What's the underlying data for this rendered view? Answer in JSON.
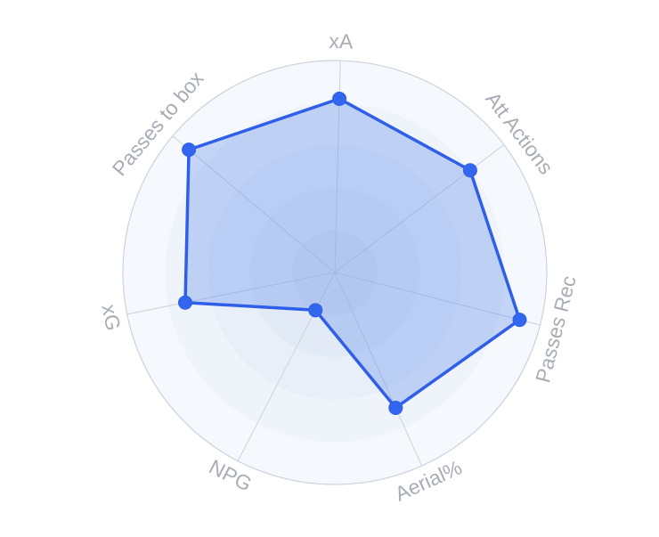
{
  "chart_data": {
    "type": "radar",
    "title": "",
    "axes": [
      "xA",
      "Att Actions",
      "Passes Rec",
      "Aerial%",
      "NPG",
      "xG",
      "Passes to box"
    ],
    "range": [
      0,
      100
    ],
    "rings": 5,
    "grid": true,
    "series": [
      {
        "values": [
          82,
          80,
          90,
          70,
          20,
          72,
          90
        ]
      }
    ],
    "colors": {
      "line": "#2F5FE8",
      "point": "#3366EE",
      "fill": "rgba(70,120,235,0.28)",
      "ring_fill": "#EDF3FA",
      "grid": "#CDD3DB",
      "label": "#A8ADB5"
    }
  }
}
